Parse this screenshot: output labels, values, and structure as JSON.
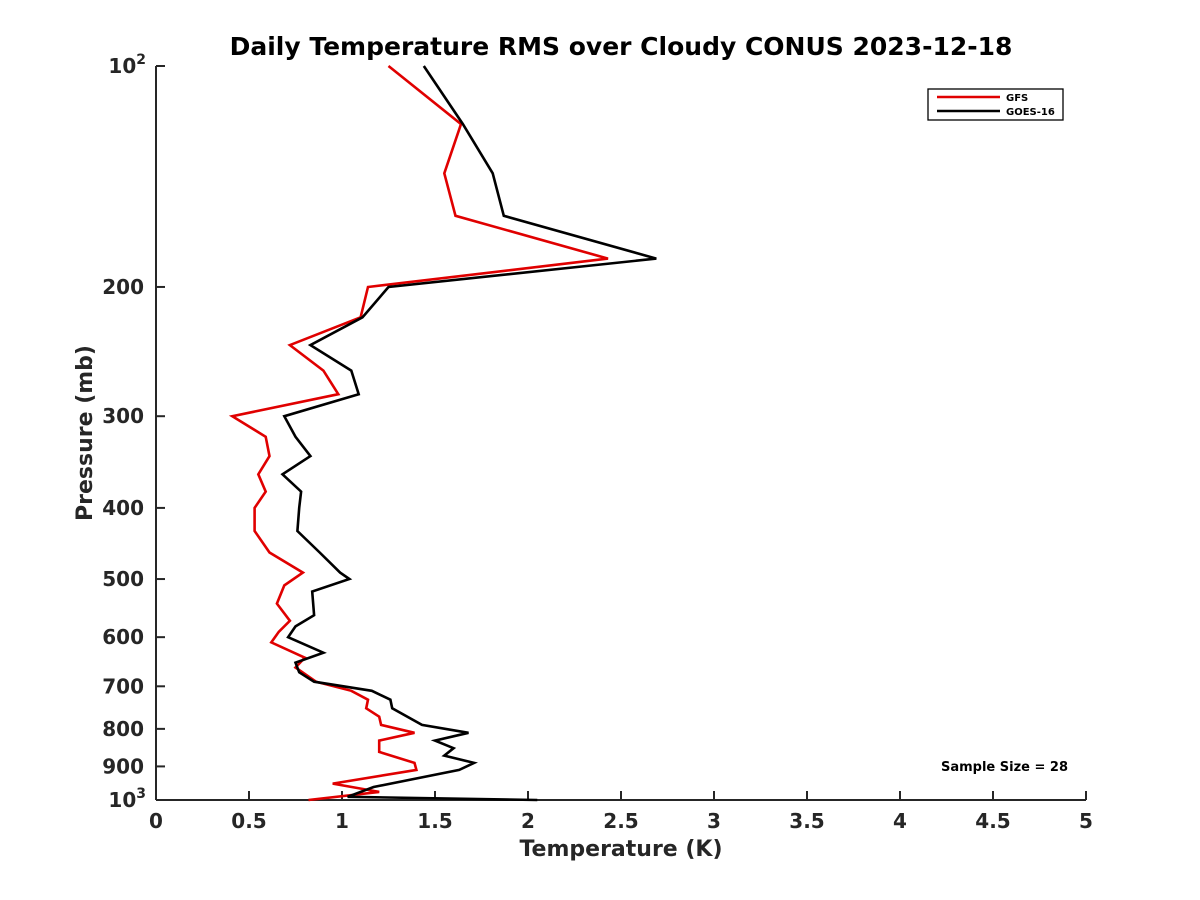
{
  "chart_data": {
    "type": "line",
    "title": "Daily Temperature RMS over Cloudy CONUS 2023-12-18",
    "xlabel": "Temperature (K)",
    "ylabel": "Pressure (mb)",
    "xlim": [
      0,
      5
    ],
    "ylim": [
      100,
      1000
    ],
    "y_scale": "log",
    "y_reversed": true,
    "x_ticks": [
      "0",
      "0.5",
      "1",
      "1.5",
      "2",
      "2.5",
      "3",
      "3.5",
      "4",
      "4.5",
      "5"
    ],
    "y_ticks": [
      {
        "value": 100,
        "base": "10",
        "exp": "2"
      },
      {
        "value": 200,
        "label": "200"
      },
      {
        "value": 300,
        "label": "300"
      },
      {
        "value": 400,
        "label": "400"
      },
      {
        "value": 500,
        "label": "500"
      },
      {
        "value": 600,
        "label": "600"
      },
      {
        "value": 700,
        "label": "700"
      },
      {
        "value": 800,
        "label": "800"
      },
      {
        "value": 900,
        "label": "900"
      },
      {
        "value": 1000,
        "base": "10",
        "exp": "3"
      }
    ],
    "grid": false,
    "legend_position": "top-right",
    "annotation": "Sample Size = 28",
    "series": [
      {
        "name": "GFS",
        "color": "#e00000",
        "points": [
          [
            1.25,
            100
          ],
          [
            1.64,
            120
          ],
          [
            1.55,
            140
          ],
          [
            1.61,
            160
          ],
          [
            2.43,
            183
          ],
          [
            1.14,
            200
          ],
          [
            1.1,
            220
          ],
          [
            0.72,
            240
          ],
          [
            0.9,
            260
          ],
          [
            0.98,
            280
          ],
          [
            0.41,
            300
          ],
          [
            0.59,
            320
          ],
          [
            0.61,
            340
          ],
          [
            0.55,
            360
          ],
          [
            0.59,
            380
          ],
          [
            0.53,
            400
          ],
          [
            0.53,
            430
          ],
          [
            0.61,
            460
          ],
          [
            0.79,
            490
          ],
          [
            0.69,
            510
          ],
          [
            0.65,
            540
          ],
          [
            0.72,
            570
          ],
          [
            0.66,
            590
          ],
          [
            0.62,
            610
          ],
          [
            0.8,
            640
          ],
          [
            0.75,
            660
          ],
          [
            0.86,
            690
          ],
          [
            1.05,
            710
          ],
          [
            1.14,
            730
          ],
          [
            1.13,
            750
          ],
          [
            1.2,
            770
          ],
          [
            1.21,
            790
          ],
          [
            1.39,
            810
          ],
          [
            1.2,
            830
          ],
          [
            1.2,
            860
          ],
          [
            1.39,
            890
          ],
          [
            1.4,
            910
          ],
          [
            0.95,
            950
          ],
          [
            1.2,
            975
          ],
          [
            0.82,
            1000
          ]
        ]
      },
      {
        "name": "GOES-16",
        "color": "#000000",
        "points": [
          [
            1.44,
            100
          ],
          [
            1.65,
            120
          ],
          [
            1.81,
            140
          ],
          [
            1.87,
            160
          ],
          [
            2.69,
            183
          ],
          [
            1.25,
            200
          ],
          [
            1.11,
            220
          ],
          [
            0.83,
            240
          ],
          [
            1.05,
            260
          ],
          [
            1.09,
            280
          ],
          [
            0.69,
            300
          ],
          [
            0.75,
            320
          ],
          [
            0.83,
            340
          ],
          [
            0.68,
            360
          ],
          [
            0.78,
            380
          ],
          [
            0.77,
            400
          ],
          [
            0.76,
            430
          ],
          [
            0.88,
            460
          ],
          [
            0.99,
            490
          ],
          [
            1.04,
            500
          ],
          [
            0.84,
            520
          ],
          [
            0.85,
            560
          ],
          [
            0.75,
            580
          ],
          [
            0.71,
            600
          ],
          [
            0.9,
            630
          ],
          [
            0.75,
            650
          ],
          [
            0.77,
            670
          ],
          [
            0.85,
            690
          ],
          [
            1.16,
            710
          ],
          [
            1.26,
            730
          ],
          [
            1.27,
            750
          ],
          [
            1.43,
            790
          ],
          [
            1.68,
            810
          ],
          [
            1.5,
            830
          ],
          [
            1.6,
            850
          ],
          [
            1.55,
            870
          ],
          [
            1.71,
            890
          ],
          [
            1.63,
            910
          ],
          [
            1.17,
            960
          ],
          [
            1.03,
            990
          ],
          [
            2.05,
            1000
          ]
        ]
      }
    ]
  }
}
